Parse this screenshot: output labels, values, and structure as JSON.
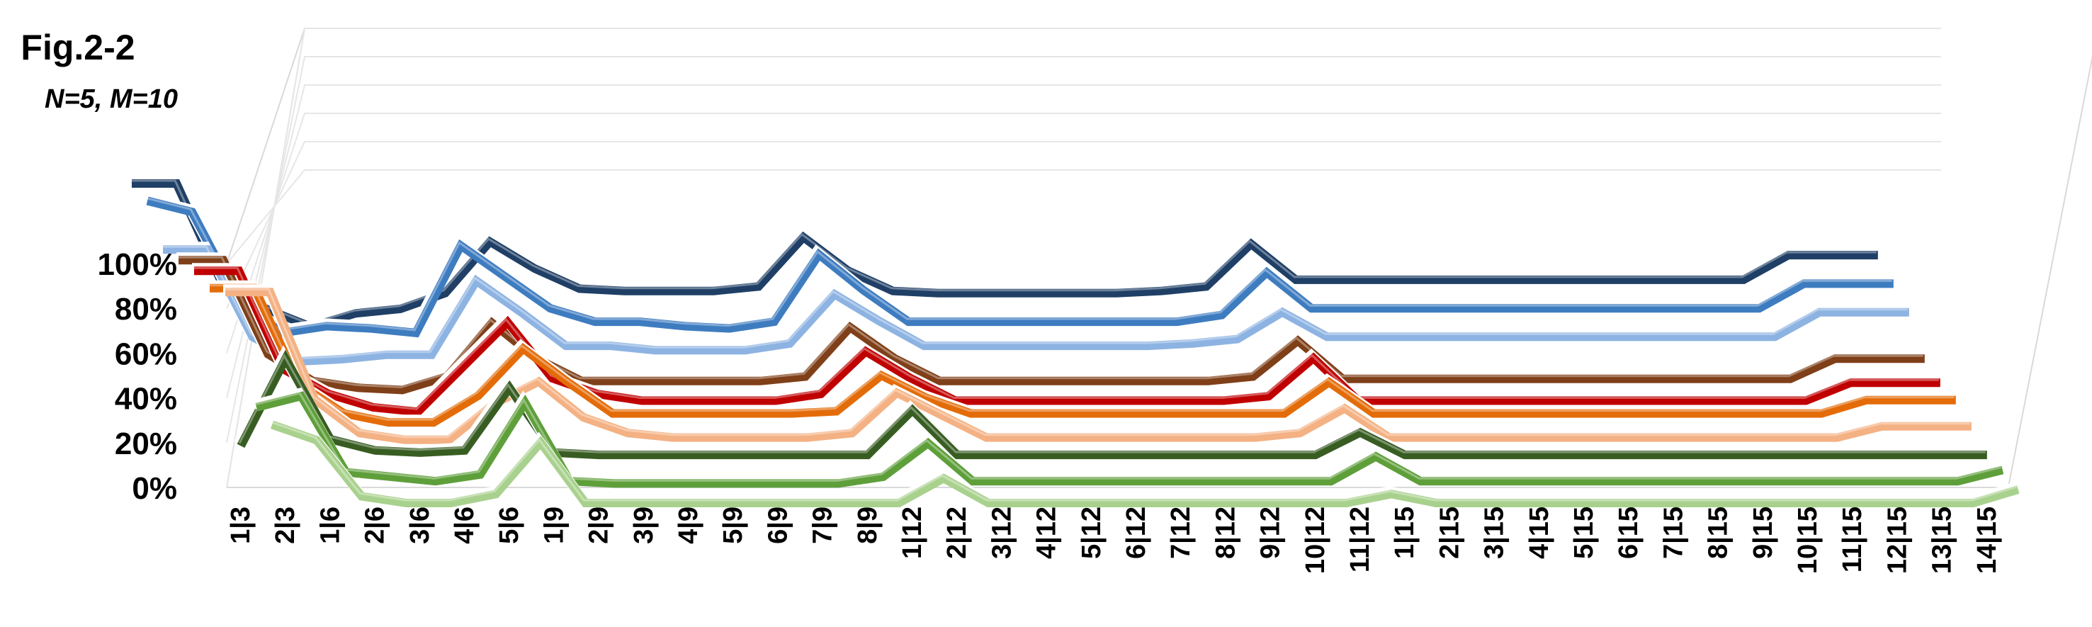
{
  "title": "Fig.2-2",
  "subtitle": "N=5, M=10",
  "chart_data": {
    "type": "line",
    "style": "3d-line",
    "yticks": [
      "0%",
      "20%",
      "40%",
      "60%",
      "80%",
      "100%"
    ],
    "ylim": [
      0,
      100
    ],
    "grid": true,
    "categories": [
      "1|3",
      "2|3",
      "1|6",
      "2|6",
      "3|6",
      "4|6",
      "5|6",
      "1|9",
      "2|9",
      "3|9",
      "4|9",
      "5|9",
      "6|9",
      "7|9",
      "8|9",
      "1|12",
      "2|12",
      "3|12",
      "4|12",
      "5|12",
      "6|12",
      "7|12",
      "8|12",
      "9|12",
      "10|12",
      "11|12",
      "1|15",
      "2|15",
      "3|15",
      "4|15",
      "5|15",
      "6|15",
      "7|15",
      "8|15",
      "9|15",
      "10|15",
      "11|15",
      "12|15",
      "13|15",
      "14|15"
    ],
    "series": [
      {
        "color": "#1f3f66",
        "values": [
          100,
          100,
          56,
          44,
          36,
          42,
          44,
          51,
          74,
          62,
          53,
          52,
          52,
          52,
          54,
          76,
          61,
          52,
          51,
          51,
          51,
          51,
          51,
          52,
          54,
          73,
          57,
          57,
          57,
          57,
          57,
          57,
          57,
          57,
          57,
          57,
          57,
          68,
          68,
          68
        ]
      },
      {
        "color": "#3e7cc0",
        "values": [
          97,
          92,
          54,
          38,
          41,
          40,
          38,
          77,
          63,
          49,
          43,
          43,
          41,
          40,
          43,
          73,
          57,
          43,
          43,
          43,
          43,
          43,
          43,
          43,
          46,
          65,
          49,
          49,
          49,
          49,
          49,
          49,
          49,
          49,
          49,
          49,
          49,
          60,
          60,
          60
        ]
      },
      {
        "color": "#8db3e2",
        "values": [
          80,
          80,
          41,
          30,
          31,
          33,
          33,
          66,
          52,
          37,
          37,
          35,
          35,
          35,
          38,
          60,
          48,
          37,
          37,
          37,
          37,
          37,
          37,
          38,
          40,
          52,
          41,
          41,
          41,
          41,
          41,
          41,
          41,
          41,
          41,
          41,
          41,
          52,
          52,
          52
        ]
      },
      {
        "color": "#7f3f18",
        "values": [
          80,
          80,
          38,
          26,
          23,
          22,
          28,
          52,
          36,
          26,
          26,
          26,
          26,
          26,
          28,
          50,
          36,
          26,
          26,
          26,
          26,
          26,
          26,
          26,
          28,
          44,
          27,
          27,
          27,
          27,
          27,
          27,
          27,
          27,
          27,
          27,
          27,
          36,
          36,
          36
        ]
      },
      {
        "color": "#c00000",
        "values": [
          80,
          80,
          36,
          25,
          19,
          17,
          37,
          57,
          32,
          25,
          22,
          22,
          22,
          22,
          25,
          44,
          32,
          22,
          22,
          22,
          22,
          22,
          22,
          22,
          24,
          41,
          22,
          22,
          22,
          22,
          22,
          22,
          22,
          22,
          22,
          22,
          22,
          30,
          30,
          30
        ]
      },
      {
        "color": "#e36c09",
        "values": [
          77,
          77,
          34,
          21,
          17,
          17,
          29,
          50,
          35,
          21,
          21,
          21,
          21,
          21,
          22,
          38,
          28,
          21,
          21,
          21,
          21,
          21,
          21,
          21,
          21,
          35,
          21,
          21,
          21,
          21,
          21,
          21,
          21,
          21,
          21,
          21,
          21,
          27,
          27,
          27
        ]
      },
      {
        "color": "#f4b183",
        "values": [
          80,
          80,
          32,
          17,
          14,
          14,
          30,
          40,
          24,
          17,
          15,
          15,
          15,
          15,
          17,
          35,
          25,
          15,
          15,
          15,
          15,
          15,
          15,
          15,
          17,
          28,
          15,
          15,
          15,
          15,
          15,
          15,
          15,
          15,
          15,
          15,
          15,
          20,
          20,
          20
        ]
      },
      {
        "color": "#385d22",
        "values": [
          16,
          55,
          19,
          14,
          13,
          14,
          42,
          13,
          12,
          12,
          12,
          12,
          12,
          12,
          12,
          32,
          12,
          12,
          12,
          12,
          12,
          12,
          12,
          12,
          12,
          22,
          12,
          12,
          12,
          12,
          12,
          12,
          12,
          12,
          12,
          12,
          12,
          12,
          12,
          12
        ]
      },
      {
        "color": "#5e9f3a",
        "values": [
          38,
          43,
          9,
          7,
          5,
          8,
          40,
          5,
          4,
          4,
          4,
          4,
          4,
          4,
          7,
          22,
          5,
          5,
          5,
          5,
          5,
          5,
          5,
          5,
          5,
          16,
          5,
          5,
          5,
          5,
          5,
          5,
          5,
          5,
          5,
          5,
          5,
          5,
          5,
          10
        ]
      },
      {
        "color": "#a9d18e",
        "values": [
          35,
          28,
          3,
          0,
          0,
          4,
          27,
          0,
          0,
          0,
          0,
          0,
          0,
          0,
          0,
          11,
          0,
          0,
          0,
          0,
          0,
          0,
          0,
          0,
          0,
          4,
          0,
          0,
          0,
          0,
          0,
          0,
          0,
          0,
          0,
          0,
          0,
          0,
          0,
          6
        ]
      }
    ]
  }
}
